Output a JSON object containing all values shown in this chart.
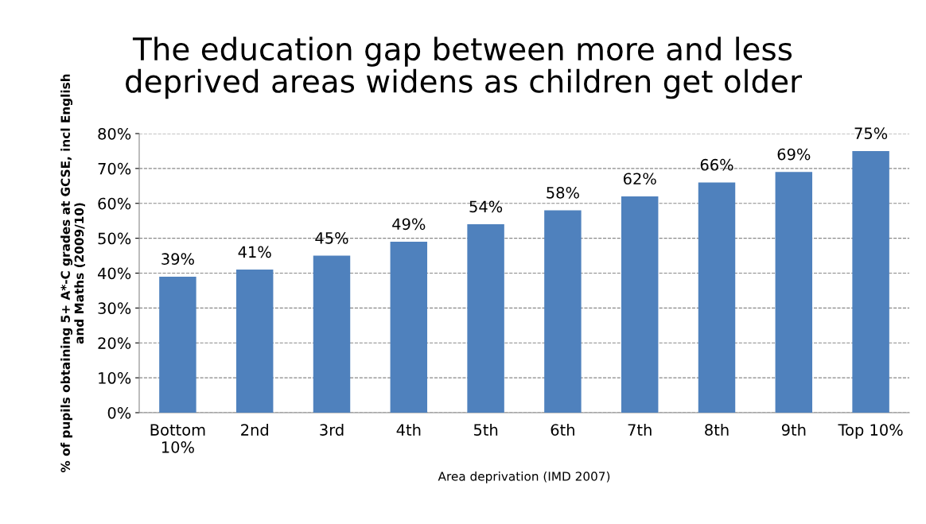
{
  "chart_data": {
    "type": "bar",
    "title": "The education gap between more and less\ndeprived areas widens as children get older",
    "xlabel": "Area deprivation (IMD 2007)",
    "ylabel": "% of pupils obtaining 5+ A*-C grades at GCSE, incl English\nand Maths (2009/10)",
    "categories": [
      "Bottom\n10%",
      "2nd",
      "3rd",
      "4th",
      "5th",
      "6th",
      "7th",
      "8th",
      "9th",
      "Top 10%"
    ],
    "values": [
      39,
      41,
      45,
      49,
      54,
      58,
      62,
      66,
      69,
      75
    ],
    "value_labels": [
      "39%",
      "41%",
      "45%",
      "49%",
      "54%",
      "58%",
      "62%",
      "66%",
      "69%",
      "75%"
    ],
    "color": "#4f81bd",
    "ylim": [
      0,
      80
    ],
    "yticks": [
      {
        "value": 0,
        "label": "0%"
      },
      {
        "value": 10,
        "label": "10%"
      },
      {
        "value": 20,
        "label": "20%"
      },
      {
        "value": 30,
        "label": "30%"
      },
      {
        "value": 40,
        "label": "40%"
      },
      {
        "value": 50,
        "label": "50%"
      },
      {
        "value": 60,
        "label": "60%"
      },
      {
        "value": 70,
        "label": "70%"
      },
      {
        "value": 80,
        "label": "80%"
      }
    ],
    "grid": "y",
    "line_style": "dashed"
  }
}
